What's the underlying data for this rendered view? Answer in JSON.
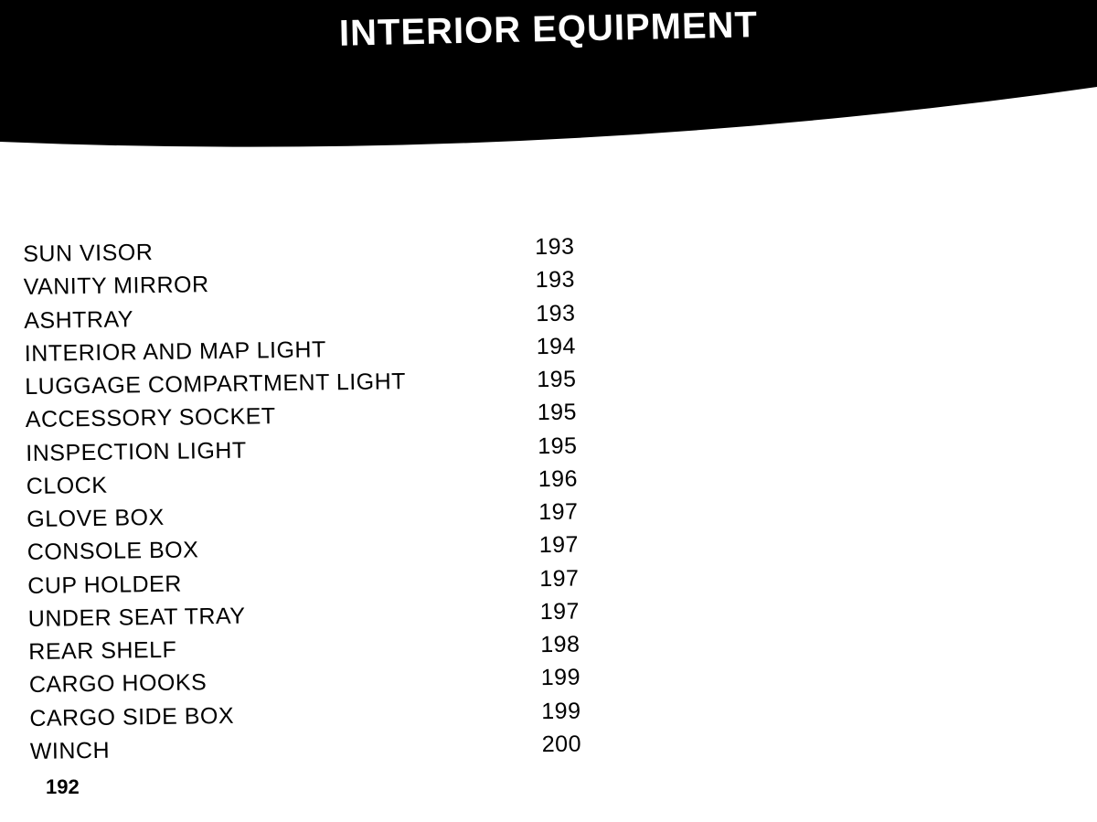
{
  "header": {
    "title": "INTERIOR EQUIPMENT",
    "band_color": "#000000",
    "title_color": "#ffffff",
    "title_fontsize": 40
  },
  "toc": {
    "label_fontsize": 25,
    "text_color": "#000000",
    "items": [
      {
        "label": "SUN VISOR",
        "page": "193"
      },
      {
        "label": "VANITY MIRROR",
        "page": "193"
      },
      {
        "label": "ASHTRAY",
        "page": "193"
      },
      {
        "label": "INTERIOR AND MAP LIGHT",
        "page": "194"
      },
      {
        "label": "LUGGAGE COMPARTMENT LIGHT",
        "page": "195"
      },
      {
        "label": "ACCESSORY SOCKET",
        "page": "195"
      },
      {
        "label": "INSPECTION LIGHT",
        "page": "195"
      },
      {
        "label": "CLOCK",
        "page": "196"
      },
      {
        "label": "GLOVE BOX",
        "page": "197"
      },
      {
        "label": "CONSOLE BOX",
        "page": "197"
      },
      {
        "label": "CUP HOLDER",
        "page": "197"
      },
      {
        "label": "UNDER SEAT TRAY",
        "page": "197"
      },
      {
        "label": "REAR SHELF",
        "page": "198"
      },
      {
        "label": "CARGO HOOKS",
        "page": "199"
      },
      {
        "label": "CARGO SIDE BOX",
        "page": "199"
      },
      {
        "label": "WINCH",
        "page": "200"
      }
    ]
  },
  "page_number": "192",
  "background_color": "#ffffff"
}
